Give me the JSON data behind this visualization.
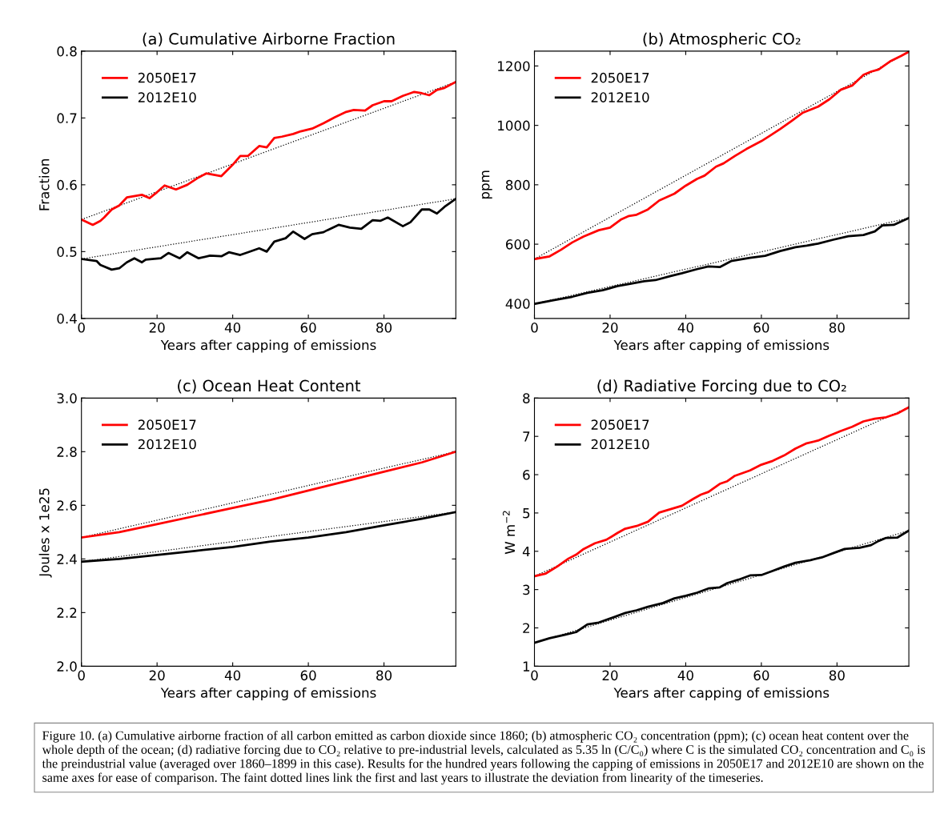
{
  "chart_data": [
    {
      "type": "line",
      "title": "(a) Cumulative Airborne Fraction",
      "xlabel": "Years after capping of emissions",
      "ylabel": "Fraction",
      "xlim": [
        0,
        99
      ],
      "xticks": [
        0,
        20,
        40,
        60,
        80
      ],
      "ylim": [
        0.4,
        0.8
      ],
      "yticks": [
        0.4,
        0.5,
        0.6,
        0.7,
        0.8
      ],
      "legend": "top left",
      "grid": false,
      "line_style": "solid",
      "series": [
        {
          "name": "2050E17",
          "color": "#ff0000",
          "x": [
            0,
            3,
            5,
            6,
            8,
            10,
            12,
            16,
            18,
            20,
            22,
            25,
            28,
            31,
            33,
            37,
            40,
            42,
            44,
            47,
            49,
            51,
            53,
            56,
            58,
            61,
            64,
            67,
            70,
            72,
            75,
            77,
            80,
            82,
            85,
            88,
            90,
            92,
            94,
            96,
            99
          ],
          "values": [
            0.548,
            0.54,
            0.546,
            0.551,
            0.563,
            0.569,
            0.581,
            0.585,
            0.58,
            0.589,
            0.599,
            0.593,
            0.6,
            0.611,
            0.617,
            0.613,
            0.63,
            0.643,
            0.643,
            0.658,
            0.656,
            0.67,
            0.672,
            0.676,
            0.68,
            0.684,
            0.692,
            0.701,
            0.709,
            0.712,
            0.711,
            0.719,
            0.725,
            0.725,
            0.733,
            0.739,
            0.737,
            0.734,
            0.742,
            0.745,
            0.754
          ]
        },
        {
          "name": "2012E10",
          "color": "#000000",
          "x": [
            0,
            4,
            5,
            8,
            10,
            12,
            14,
            16,
            17,
            21,
            23,
            26,
            28,
            31,
            34,
            37,
            39,
            42,
            44,
            47,
            49,
            51,
            54,
            56,
            59,
            61,
            64,
            65,
            68,
            71,
            74,
            77,
            79,
            81,
            85,
            87,
            90,
            92,
            94,
            96,
            99
          ],
          "values": [
            0.489,
            0.486,
            0.48,
            0.473,
            0.475,
            0.484,
            0.49,
            0.484,
            0.488,
            0.49,
            0.498,
            0.49,
            0.499,
            0.49,
            0.494,
            0.493,
            0.499,
            0.495,
            0.499,
            0.505,
            0.5,
            0.515,
            0.52,
            0.53,
            0.519,
            0.526,
            0.529,
            0.532,
            0.54,
            0.536,
            0.534,
            0.547,
            0.546,
            0.551,
            0.538,
            0.544,
            0.563,
            0.563,
            0.557,
            0.567,
            0.579
          ]
        },
        {
          "color": "#000000",
          "line_style": "dotted",
          "x": [
            0,
            99
          ],
          "values": [
            0.548,
            0.754
          ]
        },
        {
          "color": "#000000",
          "line_style": "dotted",
          "x": [
            0,
            99
          ],
          "values": [
            0.489,
            0.579
          ]
        }
      ]
    },
    {
      "type": "line",
      "title": "(b) Atmospheric CO₂",
      "xlabel": "Years after capping of emissions",
      "ylabel": "ppm",
      "xlim": [
        0,
        99
      ],
      "xticks": [
        0,
        20,
        40,
        60,
        80
      ],
      "ylim": [
        350,
        1250
      ],
      "yticks": [
        400,
        600,
        800,
        1000,
        1200
      ],
      "legend": "top left",
      "grid": false,
      "line_style": "solid",
      "series": [
        {
          "name": "2050E17",
          "color": "#ff0000",
          "x": [
            0,
            4,
            7,
            10,
            13,
            17,
            20,
            23,
            25,
            27,
            30,
            33,
            37,
            40,
            43,
            45,
            48,
            50,
            53,
            56,
            60,
            62,
            65,
            68,
            71,
            75,
            78,
            81,
            84,
            87,
            89,
            91,
            94,
            97,
            99
          ],
          "values": [
            550,
            559,
            581,
            606,
            626,
            647,
            656,
            684,
            695,
            699,
            717,
            747,
            770,
            797,
            820,
            831,
            861,
            872,
            897,
            920,
            947,
            963,
            988,
            1015,
            1043,
            1063,
            1088,
            1120,
            1134,
            1170,
            1181,
            1188,
            1215,
            1234,
            1248
          ]
        },
        {
          "name": "2012E10",
          "color": "#000000",
          "x": [
            0,
            5,
            10,
            14,
            18,
            22,
            25,
            29,
            32,
            36,
            39,
            43,
            46,
            49,
            52,
            57,
            61,
            65,
            69,
            72,
            75,
            79,
            83,
            87,
            90,
            92,
            95,
            99
          ],
          "values": [
            399,
            411,
            423,
            436,
            445,
            459,
            466,
            475,
            479,
            493,
            502,
            516,
            525,
            523,
            543,
            554,
            561,
            577,
            590,
            595,
            602,
            615,
            627,
            631,
            643,
            663,
            665,
            688
          ]
        },
        {
          "color": "#000000",
          "line_style": "dotted",
          "x": [
            0,
            99
          ],
          "values": [
            550,
            1248
          ]
        },
        {
          "color": "#000000",
          "line_style": "dotted",
          "x": [
            0,
            99
          ],
          "values": [
            399,
            688
          ]
        }
      ]
    },
    {
      "type": "line",
      "title": "(c) Ocean Heat Content",
      "xlabel": "Years after capping of emissions",
      "ylabel": "Joules x 1e25",
      "xlim": [
        0,
        99
      ],
      "xticks": [
        0,
        20,
        40,
        60,
        80
      ],
      "ylim": [
        2.0,
        3.0
      ],
      "yticks": [
        {
          "value": 2.0,
          "label": "2.0"
        },
        2.2,
        2.4,
        2.6,
        2.8,
        {
          "value": 3.0,
          "label": "3.0"
        }
      ],
      "legend": "top left",
      "grid": false,
      "line_style": "solid",
      "series": [
        {
          "name": "2050E17",
          "color": "#ff0000",
          "x": [
            0,
            10,
            20,
            30,
            40,
            50,
            60,
            70,
            80,
            90,
            99
          ],
          "values": [
            2.48,
            2.5,
            2.53,
            2.56,
            2.59,
            2.62,
            2.655,
            2.69,
            2.725,
            2.76,
            2.8
          ]
        },
        {
          "name": "2012E10",
          "color": "#000000",
          "x": [
            0,
            10,
            20,
            30,
            40,
            50,
            60,
            70,
            80,
            90,
            99
          ],
          "values": [
            2.39,
            2.4,
            2.415,
            2.43,
            2.445,
            2.465,
            2.48,
            2.5,
            2.525,
            2.55,
            2.575
          ]
        },
        {
          "color": "#000000",
          "line_style": "dotted",
          "x": [
            0,
            99
          ],
          "values": [
            2.48,
            2.8
          ]
        },
        {
          "color": "#000000",
          "line_style": "dotted",
          "x": [
            0,
            99
          ],
          "values": [
            2.39,
            2.575
          ]
        }
      ]
    },
    {
      "type": "line",
      "title": "(d) Radiative Forcing due to CO₂",
      "xlabel": "Years after capping of emissions",
      "ylabel": "W m$^{−2}$",
      "xlim": [
        0,
        99
      ],
      "xticks": [
        0,
        20,
        40,
        60,
        80
      ],
      "ylim": [
        1,
        8
      ],
      "yticks": [
        1,
        2,
        3,
        4,
        5,
        6,
        7,
        8
      ],
      "legend": "top left",
      "grid": false,
      "line_style": "solid",
      "series": [
        {
          "name": "2050E17",
          "color": "#ff0000",
          "x": [
            0,
            3,
            6,
            9,
            11,
            13,
            16,
            19,
            22,
            24,
            27,
            30,
            33,
            36,
            39,
            42,
            44,
            46,
            49,
            51,
            53,
            57,
            60,
            63,
            66,
            69,
            72,
            75,
            78,
            81,
            84,
            87,
            90,
            93,
            96,
            99
          ],
          "values": [
            3.35,
            3.42,
            3.6,
            3.81,
            3.91,
            4.06,
            4.21,
            4.3,
            4.48,
            4.59,
            4.66,
            4.77,
            5.01,
            5.1,
            5.19,
            5.37,
            5.48,
            5.55,
            5.76,
            5.83,
            5.97,
            6.11,
            6.26,
            6.36,
            6.5,
            6.68,
            6.82,
            6.89,
            7.02,
            7.14,
            7.25,
            7.39,
            7.46,
            7.5,
            7.6,
            7.76
          ]
        },
        {
          "name": "2012E10",
          "color": "#000000",
          "x": [
            0,
            4,
            8,
            11,
            14,
            17,
            21,
            24,
            27,
            30,
            34,
            37,
            40,
            43,
            46,
            49,
            51,
            54,
            57,
            60,
            63,
            66,
            69,
            73,
            76,
            79,
            82,
            86,
            89,
            91,
            93,
            96,
            99
          ],
          "values": [
            1.61,
            1.73,
            1.82,
            1.89,
            2.09,
            2.14,
            2.28,
            2.39,
            2.46,
            2.55,
            2.65,
            2.77,
            2.84,
            2.92,
            3.03,
            3.06,
            3.17,
            3.26,
            3.37,
            3.38,
            3.49,
            3.6,
            3.7,
            3.77,
            3.84,
            3.95,
            4.06,
            4.09,
            4.16,
            4.27,
            4.35,
            4.36,
            4.54
          ]
        },
        {
          "color": "#000000",
          "line_style": "dotted",
          "x": [
            0,
            99
          ],
          "values": [
            3.35,
            7.76
          ]
        },
        {
          "color": "#000000",
          "line_style": "dotted",
          "x": [
            0,
            99
          ],
          "values": [
            1.61,
            4.54
          ]
        }
      ],
      "annotations": [
        "Figure 10. (a) Cumulative airborne fraction of all carbon emitted as carbon dioxide since 1860; (b) atmospheric CO₂ concentration (ppm); (c) ocean heat content over the whole depth of the ocean; (d) radiative forcing due to CO₂ relative to pre-industrial levels, calculated as 5.35 ln (C/C₀) where C is the simulated CO₂ concentration and C₀ is the preindustrial value (averaged over 1860–1899 in this case). Results for the hundred years following the capping of emissions in 2050E17 and 2012E10 are shown on the same axes for ease of comparison. The faint dotted lines link the first and last years to illustrate the deviation from linearity of the timeseries."
      ]
    }
  ]
}
